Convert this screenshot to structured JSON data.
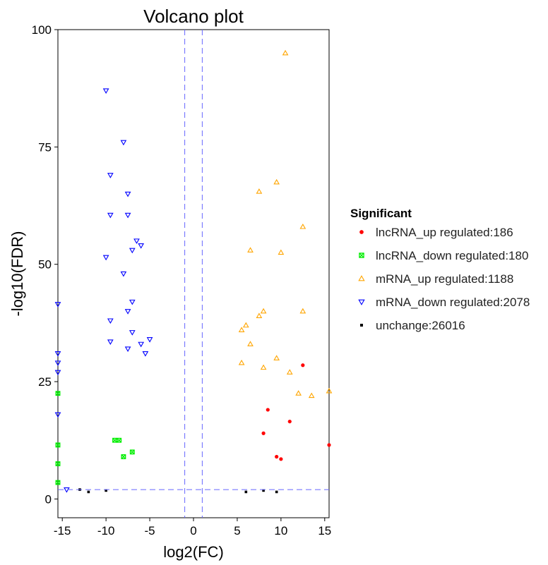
{
  "chart_data": {
    "type": "scatter",
    "title": "Volcano plot",
    "xlabel": "log2(FC)",
    "ylabel": "-log10(FDR)",
    "xlim": [
      -15.5,
      15.5
    ],
    "ylim": [
      -4,
      100
    ],
    "x_ticks": [
      "-15",
      "-10",
      "-5",
      "0",
      "5",
      "10",
      "15"
    ],
    "y_ticks": [
      "0",
      "25",
      "50",
      "75",
      "100"
    ],
    "thresholds": {
      "log2fc": [
        -1,
        1
      ],
      "neg_log10_fdr": 2
    },
    "legend": {
      "title": "Significant",
      "position": "right",
      "items": [
        {
          "key": "lncRNA_up",
          "label": "lncRNA_up regulated:186",
          "color": "#ff0000",
          "marker": "circle"
        },
        {
          "key": "lncRNA_down",
          "label": "lncRNA_down regulated:180",
          "color": "#00ee00",
          "marker": "square-x"
        },
        {
          "key": "mRNA_up",
          "label": "mRNA_up regulated:1188",
          "color": "#ffa500",
          "marker": "triangle-up"
        },
        {
          "key": "mRNA_down",
          "label": "mRNA_down regulated:2078",
          "color": "#0000ff",
          "marker": "triangle-down"
        },
        {
          "key": "unchange",
          "label": "unchange:26016",
          "color": "#000000",
          "marker": "square"
        }
      ]
    },
    "series": [
      {
        "name": "mRNA_down regulated:2078",
        "key": "mRNA_down",
        "points": [
          [
            -10,
            87
          ],
          [
            -8,
            76
          ],
          [
            -9.5,
            69
          ],
          [
            -7.5,
            65
          ],
          [
            -9.5,
            60.5
          ],
          [
            -7.5,
            60.5
          ],
          [
            -6.5,
            55
          ],
          [
            -6,
            54
          ],
          [
            -7,
            53
          ],
          [
            -10,
            51.5
          ],
          [
            -8,
            48
          ],
          [
            -7,
            42
          ],
          [
            -7.5,
            40
          ],
          [
            -9.5,
            38
          ],
          [
            -7,
            35.5
          ],
          [
            -5,
            34
          ],
          [
            -9.5,
            33.5
          ],
          [
            -6,
            33
          ],
          [
            -7.5,
            32
          ],
          [
            -5.5,
            31
          ],
          [
            -15.5,
            41.5
          ],
          [
            -15.5,
            31
          ],
          [
            -15.5,
            29
          ],
          [
            -15.5,
            27
          ],
          [
            -15.5,
            18
          ],
          [
            -14.5,
            2
          ]
        ]
      },
      {
        "name": "mRNA_up regulated:1188",
        "key": "mRNA_up",
        "points": [
          [
            10.5,
            95
          ],
          [
            9.5,
            67.5
          ],
          [
            7.5,
            65.5
          ],
          [
            12.5,
            58
          ],
          [
            6.5,
            53
          ],
          [
            10,
            52.5
          ],
          [
            8,
            40
          ],
          [
            12.5,
            40
          ],
          [
            7.5,
            39
          ],
          [
            6,
            37
          ],
          [
            5.5,
            36
          ],
          [
            6.5,
            33
          ],
          [
            9.5,
            30
          ],
          [
            5.5,
            29
          ],
          [
            8,
            28
          ],
          [
            11,
            27
          ],
          [
            13.5,
            22
          ],
          [
            12,
            22.5
          ],
          [
            15.5,
            23
          ]
        ]
      },
      {
        "name": "lncRNA_up regulated:186",
        "key": "lncRNA_up",
        "points": [
          [
            12.5,
            28.5
          ],
          [
            11,
            16.5
          ],
          [
            8.5,
            19
          ],
          [
            8,
            14
          ],
          [
            9.5,
            9
          ],
          [
            10,
            8.5
          ],
          [
            15.5,
            11.5
          ]
        ]
      },
      {
        "name": "lncRNA_down regulated:180",
        "key": "lncRNA_down",
        "points": [
          [
            -8.5,
            12.5
          ],
          [
            -9,
            12.5
          ],
          [
            -8,
            9
          ],
          [
            -7,
            10
          ],
          [
            -15.5,
            22.5
          ],
          [
            -15.5,
            11.5
          ],
          [
            -15.5,
            7.5
          ],
          [
            -15.5,
            3.5
          ]
        ]
      },
      {
        "name": "unchange:26016",
        "key": "unchange",
        "points": [
          [
            -13,
            2
          ],
          [
            -12,
            1.5
          ],
          [
            -10,
            1.8
          ],
          [
            6,
            1.5
          ],
          [
            8,
            1.8
          ],
          [
            9.5,
            1.5
          ]
        ]
      }
    ]
  }
}
